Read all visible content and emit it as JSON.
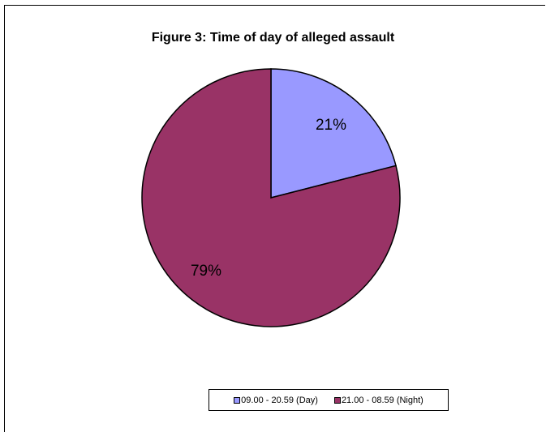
{
  "chart_data": {
    "type": "pie",
    "title": "Figure 3: Time of day of alleged assault",
    "legend_position": "bottom",
    "slices": [
      {
        "name": "09.00 - 20.59 (Day)",
        "value": 21,
        "label": "21%",
        "color": "#9999ff"
      },
      {
        "name": "21.00 - 08.59 (Night)",
        "value": 79,
        "label": "79%",
        "color": "#993366"
      }
    ]
  }
}
